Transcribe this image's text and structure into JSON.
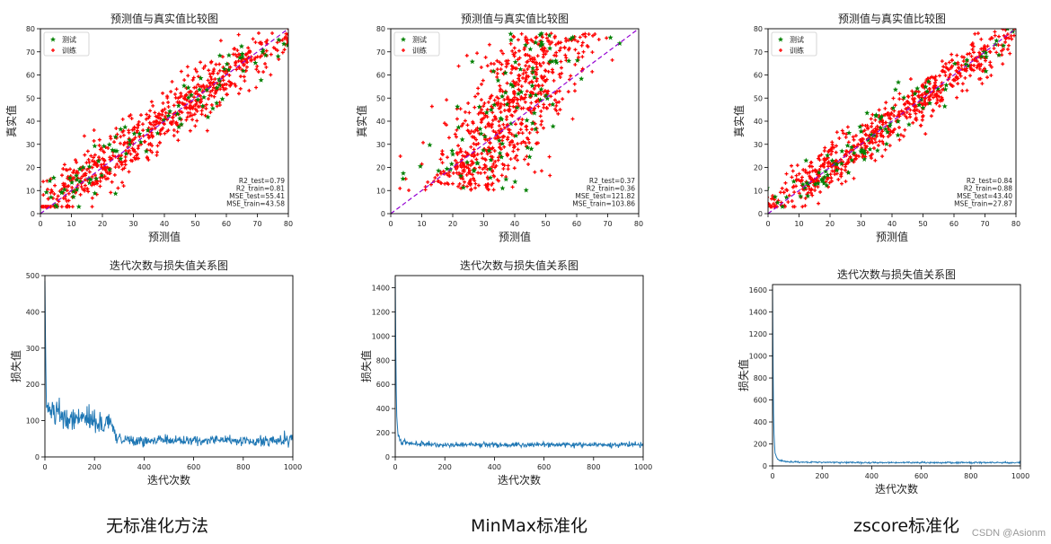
{
  "colors": {
    "test": "#008000",
    "train": "#ff0000",
    "ref_line": "#9400d3",
    "loss_line": "#1f77b4"
  },
  "captions": [
    "无标准化方法",
    "MinMax标准化",
    "zscore标准化"
  ],
  "watermark": "CSDN @Asionm",
  "chart_data": [
    {
      "type": "scatter",
      "title": "预测值与真实值比较图",
      "xlabel": "预测值",
      "ylabel": "真实值",
      "xlim": [
        0,
        80
      ],
      "ylim": [
        0,
        80
      ],
      "xticks": [
        0,
        10,
        20,
        30,
        40,
        50,
        60,
        70,
        80
      ],
      "yticks": [
        0,
        10,
        20,
        30,
        40,
        50,
        60,
        70,
        80
      ],
      "grid": false,
      "legend": "top-left",
      "reference_line": [
        [
          0,
          0
        ],
        [
          80,
          80
        ]
      ],
      "series": [
        {
          "name": "测试",
          "marker": "star",
          "color": "#008000",
          "approx_count": 100,
          "spread": 6.5
        },
        {
          "name": "训练",
          "marker": "plus",
          "color": "#ff0000",
          "approx_count": 700,
          "spread": 6.5
        }
      ],
      "annotations": [
        "R2_test=0.79",
        "R2_train=0.81",
        "MSE_test=55.41",
        "MSE_train=43.58"
      ]
    },
    {
      "type": "scatter",
      "title": "预测值与真实值比较图",
      "xlabel": "预测值",
      "ylabel": "真实值",
      "xlim": [
        0,
        80
      ],
      "ylim": [
        0,
        80
      ],
      "xticks": [
        0,
        10,
        20,
        30,
        40,
        50,
        60,
        70,
        80
      ],
      "yticks": [
        0,
        10,
        20,
        30,
        40,
        50,
        60,
        70,
        80
      ],
      "grid": false,
      "legend": "top-left",
      "reference_line": [
        [
          0,
          0
        ],
        [
          80,
          80
        ]
      ],
      "series": [
        {
          "name": "测试",
          "marker": "star",
          "color": "#008000",
          "approx_count": 100,
          "spread": 12
        },
        {
          "name": "训练",
          "marker": "plus",
          "color": "#ff0000",
          "approx_count": 700,
          "spread": 11
        }
      ],
      "annotations": [
        "R2_test=0.37",
        "R2_train=0.36",
        "MSE_test=121.82",
        "MSE_train=103.86"
      ]
    },
    {
      "type": "scatter",
      "title": "预测值与真实值比较图",
      "xlabel": "预测值",
      "ylabel": "真实值",
      "xlim": [
        0,
        80
      ],
      "ylim": [
        0,
        80
      ],
      "xticks": [
        0,
        10,
        20,
        30,
        40,
        50,
        60,
        70,
        80
      ],
      "yticks": [
        0,
        10,
        20,
        30,
        40,
        50,
        60,
        70,
        80
      ],
      "grid": false,
      "legend": "top-left",
      "reference_line": [
        [
          0,
          0
        ],
        [
          80,
          80
        ]
      ],
      "series": [
        {
          "name": "测试",
          "marker": "star",
          "color": "#008000",
          "approx_count": 100,
          "spread": 5.8
        },
        {
          "name": "训练",
          "marker": "plus",
          "color": "#ff0000",
          "approx_count": 700,
          "spread": 5.0
        }
      ],
      "annotations": [
        "R2_test=0.84",
        "R2_train=0.88",
        "MSE_test=43.40",
        "MSE_train=27.87"
      ]
    },
    {
      "type": "line",
      "title": "迭代次数与损失值关系图",
      "xlabel": "迭代次数",
      "ylabel": "损失值",
      "xlim": [
        0,
        1000
      ],
      "ylim": [
        0,
        500
      ],
      "xticks": [
        0,
        200,
        400,
        600,
        800,
        1000
      ],
      "yticks": [
        0,
        100,
        200,
        300,
        400,
        500
      ],
      "grid": false,
      "series": [
        {
          "name": "",
          "color": "#1f77b4",
          "x": [
            0,
            3,
            6,
            10,
            20,
            40,
            80,
            120,
            160,
            200,
            240,
            270,
            290,
            320,
            400,
            500,
            600,
            700,
            800,
            900,
            1000
          ],
          "values": [
            485,
            280,
            150,
            130,
            125,
            120,
            110,
            105,
            110,
            100,
            95,
            90,
            55,
            45,
            45,
            45,
            45,
            45,
            45,
            45,
            45
          ],
          "noise": [
            0,
            40,
            30,
            25,
            25,
            25,
            25,
            30,
            30,
            30,
            25,
            20,
            12,
            12,
            12,
            12,
            12,
            12,
            12,
            12,
            12
          ]
        }
      ]
    },
    {
      "type": "line",
      "title": "迭代次数与损失值关系图",
      "xlabel": "迭代次数",
      "ylabel": "损失值",
      "xlim": [
        0,
        1000
      ],
      "ylim": [
        0,
        1500
      ],
      "xticks": [
        0,
        200,
        400,
        600,
        800,
        1000
      ],
      "yticks": [
        0,
        200,
        400,
        600,
        800,
        1000,
        1200,
        1400
      ],
      "grid": false,
      "series": [
        {
          "name": "",
          "color": "#1f77b4",
          "x": [
            0,
            2,
            5,
            10,
            15,
            25,
            50,
            100,
            200,
            400,
            600,
            800,
            1000
          ],
          "values": [
            1480,
            900,
            400,
            200,
            150,
            130,
            115,
            105,
            100,
            100,
            100,
            100,
            100
          ],
          "noise": [
            0,
            0,
            60,
            40,
            25,
            20,
            18,
            18,
            18,
            18,
            18,
            18,
            18
          ]
        }
      ]
    },
    {
      "type": "line",
      "title": "迭代次数与损失值关系图",
      "xlabel": "迭代次数",
      "ylabel": "损失值",
      "xlim": [
        0,
        1000
      ],
      "ylim": [
        0,
        1650
      ],
      "xticks": [
        0,
        200,
        400,
        600,
        800,
        1000
      ],
      "yticks": [
        0,
        200,
        400,
        600,
        800,
        1000,
        1200,
        1400,
        1600
      ],
      "grid": false,
      "series": [
        {
          "name": "",
          "color": "#1f77b4",
          "x": [
            0,
            2,
            5,
            10,
            15,
            25,
            50,
            100,
            200,
            400,
            600,
            800,
            1000
          ],
          "values": [
            1610,
            900,
            300,
            130,
            80,
            55,
            40,
            35,
            32,
            30,
            30,
            30,
            30
          ],
          "noise": [
            0,
            0,
            40,
            20,
            12,
            8,
            6,
            6,
            6,
            6,
            6,
            6,
            6
          ]
        }
      ]
    }
  ]
}
